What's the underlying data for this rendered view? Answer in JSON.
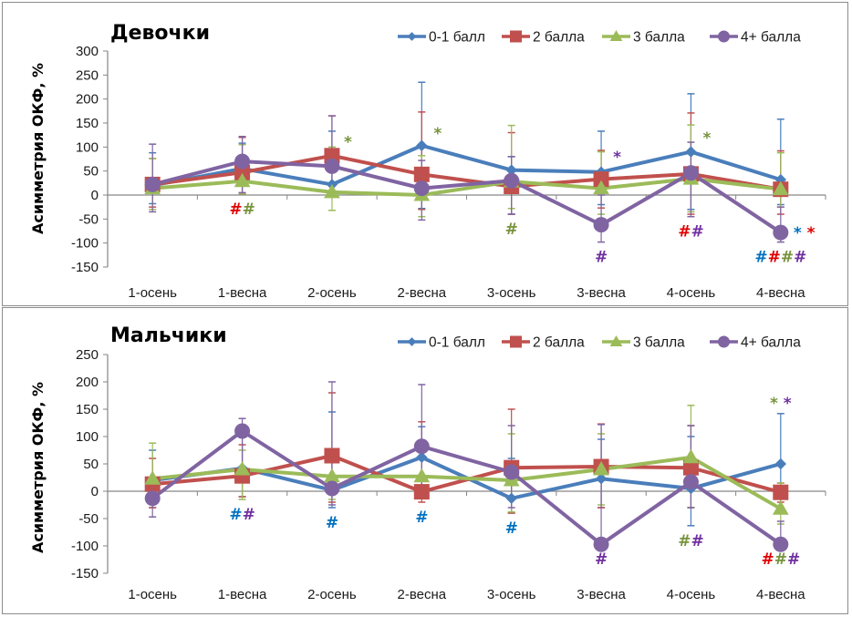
{
  "colors": {
    "s0": "#4a7ebb",
    "s1": "#c0504d",
    "s2": "#9bbb59",
    "s3": "#8064a2",
    "annot_blue": "#0070c0",
    "annot_red": "#e00000",
    "annot_green": "#77933c",
    "annot_purple": "#7030a0"
  },
  "chart_data": [
    {
      "type": "line",
      "title": "Девочки",
      "xlabel": "",
      "ylabel": "Асимметрия ОКФ, %",
      "ylim": [
        -150,
        300
      ],
      "yticks": [
        "300",
        "250",
        "200",
        "150",
        "100",
        "50",
        "0",
        "-50",
        "-100",
        "-150"
      ],
      "ytick_values": [
        300,
        250,
        200,
        150,
        100,
        50,
        0,
        -50,
        -100,
        -150
      ],
      "categories": [
        "1-осень",
        "1-весна",
        "2-осень",
        "2-весна",
        "3-осень",
        "3-весна",
        "4-осень",
        "4-весна"
      ],
      "legend": "top-right",
      "grid": false,
      "series": [
        {
          "name": "0-1 балл",
          "marker": "diamond",
          "color_key": "s0",
          "values": [
            20,
            55,
            22,
            103,
            52,
            48,
            90,
            32
          ],
          "err_high": [
            88,
            108,
            133,
            235,
            80,
            133,
            211,
            158
          ],
          "err_low": [
            -18,
            2,
            -2,
            -28,
            -40,
            -20,
            -30,
            -20
          ]
        },
        {
          "name": "2 балла",
          "marker": "square",
          "color_key": "s1",
          "values": [
            22,
            47,
            82,
            43,
            18,
            33,
            44,
            12
          ],
          "err_high": [
            76,
            120,
            165,
            173,
            130,
            93,
            171,
            92
          ],
          "err_low": [
            -25,
            2,
            0,
            -30,
            -40,
            -27,
            -40,
            -40
          ]
        },
        {
          "name": "3 балла",
          "marker": "triangle",
          "color_key": "s2",
          "values": [
            14,
            29,
            6,
            0,
            28,
            14,
            34,
            12
          ],
          "err_high": [
            76,
            105,
            100,
            82,
            145,
            90,
            146,
            88
          ],
          "err_low": [
            -30,
            2,
            -32,
            -45,
            -28,
            -40,
            -35,
            -25
          ]
        },
        {
          "name": "4+ балла",
          "marker": "circle",
          "color_key": "s3",
          "values": [
            22,
            70,
            60,
            14,
            30,
            -62,
            46,
            -78
          ],
          "err_high": [
            106,
            122,
            165,
            72,
            80,
            0,
            110,
            -25
          ],
          "err_low": [
            -35,
            5,
            0,
            -52,
            -40,
            -98,
            -45,
            -98
          ]
        }
      ],
      "annotations": [
        {
          "category": "1-весна",
          "position": "below",
          "parts": [
            {
              "text": "#",
              "color_key": "annot_red"
            },
            {
              "text": "#",
              "color_key": "annot_green"
            }
          ]
        },
        {
          "category": "2-осень",
          "position": "above-right",
          "parts": [
            {
              "text": "*",
              "color_key": "annot_green"
            }
          ]
        },
        {
          "category": "2-весна",
          "position": "above-right",
          "parts": [
            {
              "text": "*",
              "color_key": "annot_green"
            }
          ]
        },
        {
          "category": "3-осень",
          "position": "below",
          "parts": [
            {
              "text": "#",
              "color_key": "annot_green"
            }
          ]
        },
        {
          "category": "3-весна",
          "position": "above-right",
          "parts": [
            {
              "text": "*",
              "color_key": "annot_purple"
            }
          ]
        },
        {
          "category": "3-весна",
          "position": "below",
          "parts": [
            {
              "text": "#",
              "color_key": "annot_purple"
            }
          ]
        },
        {
          "category": "4-осень",
          "position": "above-right",
          "parts": [
            {
              "text": "*",
              "color_key": "annot_green"
            }
          ]
        },
        {
          "category": "4-осень",
          "position": "below",
          "parts": [
            {
              "text": "#",
              "color_key": "annot_red"
            },
            {
              "text": "#",
              "color_key": "annot_purple"
            }
          ]
        },
        {
          "category": "4-весна",
          "position": "right",
          "parts": [
            {
              "text": "*",
              "color_key": "annot_blue"
            },
            {
              "text": " ",
              "color_key": "annot_blue"
            },
            {
              "text": "*",
              "color_key": "annot_red"
            }
          ]
        },
        {
          "category": "4-весна",
          "position": "below",
          "parts": [
            {
              "text": "#",
              "color_key": "annot_blue"
            },
            {
              "text": "#",
              "color_key": "annot_red"
            },
            {
              "text": "#",
              "color_key": "annot_green"
            },
            {
              "text": "#",
              "color_key": "annot_purple"
            }
          ]
        }
      ]
    },
    {
      "type": "line",
      "title": "Мальчики",
      "xlabel": "",
      "ylabel": "Асимметрия ОКФ, %",
      "ylim": [
        -150,
        250
      ],
      "yticks": [
        "250",
        "200",
        "150",
        "100",
        "50",
        "0",
        "-50",
        "-100",
        "-150"
      ],
      "ytick_values": [
        250,
        200,
        150,
        100,
        50,
        0,
        -50,
        -100,
        -150
      ],
      "categories": [
        "1-осень",
        "1-весна",
        "2-осень",
        "2-весна",
        "3-осень",
        "3-весна",
        "4-осень",
        "4-весна"
      ],
      "legend": "top-right",
      "grid": false,
      "series": [
        {
          "name": "0-1 балл",
          "marker": "diamond",
          "color_key": "s0",
          "values": [
            20,
            42,
            2,
            62,
            -13,
            23,
            5,
            50
          ],
          "err_high": [
            75,
            100,
            145,
            118,
            60,
            95,
            100,
            142
          ],
          "err_low": [
            -30,
            -10,
            -30,
            5,
            -40,
            -30,
            -63,
            -40
          ]
        },
        {
          "name": "2 балла",
          "marker": "square",
          "color_key": "s1",
          "values": [
            13,
            28,
            65,
            -1,
            43,
            45,
            43,
            -2
          ],
          "err_high": [
            60,
            85,
            180,
            127,
            150,
            123,
            120,
            15
          ],
          "err_low": [
            -30,
            -10,
            -20,
            -20,
            -40,
            -30,
            -30,
            -20
          ]
        },
        {
          "name": "3 балла",
          "marker": "triangle",
          "color_key": "s2",
          "values": [
            23,
            40,
            27,
            27,
            20,
            40,
            62,
            -32
          ],
          "err_high": [
            88,
            75,
            60,
            80,
            105,
            105,
            157,
            15
          ],
          "err_low": [
            -10,
            -15,
            -15,
            -5,
            -38,
            -25,
            -30,
            -60
          ]
        },
        {
          "name": "4+ балла",
          "marker": "circle",
          "color_key": "s3",
          "values": [
            -13,
            110,
            5,
            82,
            35,
            -97,
            17,
            -97
          ],
          "err_high": [
            20,
            133,
            200,
            195,
            120,
            122,
            120,
            -55
          ],
          "err_low": [
            -47,
            30,
            -25,
            10,
            -30,
            -97,
            -30,
            -97
          ]
        }
      ],
      "annotations": [
        {
          "category": "1-весна",
          "position": "below",
          "parts": [
            {
              "text": "#",
              "color_key": "annot_blue"
            },
            {
              "text": "#",
              "color_key": "annot_purple"
            }
          ]
        },
        {
          "category": "2-осень",
          "position": "below",
          "parts": [
            {
              "text": "#",
              "color_key": "annot_blue"
            }
          ]
        },
        {
          "category": "2-весна",
          "position": "below",
          "parts": [
            {
              "text": "#",
              "color_key": "annot_blue"
            }
          ]
        },
        {
          "category": "3-осень",
          "position": "below",
          "parts": [
            {
              "text": "#",
              "color_key": "annot_blue"
            }
          ]
        },
        {
          "category": "3-весна",
          "position": "below",
          "parts": [
            {
              "text": "#",
              "color_key": "annot_purple"
            }
          ]
        },
        {
          "category": "4-осень",
          "position": "below",
          "parts": [
            {
              "text": "#",
              "color_key": "annot_green"
            },
            {
              "text": "#",
              "color_key": "annot_purple"
            }
          ]
        },
        {
          "category": "4-весна",
          "position": "above",
          "parts": [
            {
              "text": "*",
              "color_key": "annot_green"
            },
            {
              "text": " ",
              "color_key": "annot_green"
            },
            {
              "text": "*",
              "color_key": "annot_purple"
            }
          ]
        },
        {
          "category": "4-весна",
          "position": "below",
          "parts": [
            {
              "text": "#",
              "color_key": "annot_red"
            },
            {
              "text": "#",
              "color_key": "annot_green"
            },
            {
              "text": "#",
              "color_key": "annot_purple"
            }
          ]
        }
      ]
    }
  ]
}
